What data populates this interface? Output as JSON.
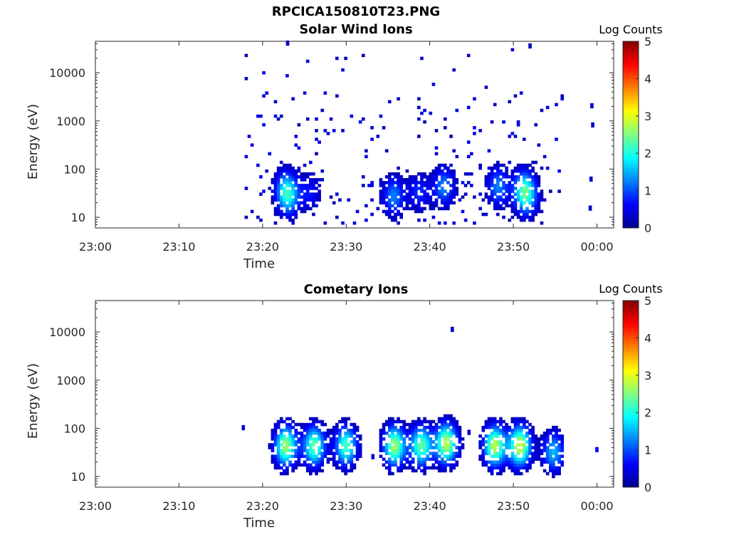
{
  "figure": {
    "title": "RPCICA150810T23.PNG"
  },
  "chart_data": [
    {
      "type": "heatmap",
      "title": "Solar Wind Ions",
      "xlabel": "Time",
      "ylabel": "Energy (eV)",
      "x_ticks": [
        "23:00",
        "23:10",
        "23:20",
        "23:30",
        "23:40",
        "23:50",
        "00:00"
      ],
      "x_range_minutes": [
        0,
        62
      ],
      "y_scale": "log",
      "y_ticks": [
        10,
        100,
        1000,
        10000
      ],
      "y_tick_labels": [
        "10",
        "100",
        "1000",
        "10000"
      ],
      "y_range": [
        6,
        45000
      ],
      "colorbar": {
        "title": "Log Counts",
        "range": [
          0,
          5
        ],
        "ticks": [
          "0",
          "1",
          "2",
          "3",
          "4",
          "5"
        ],
        "colormap": "jet"
      },
      "grid": false,
      "data_extent_minutes": [
        17.5,
        56
      ],
      "blobs": [
        {
          "t": 22.5,
          "e": 35,
          "v": 0.8
        },
        {
          "t": 23.0,
          "e": 25,
          "v": 0.9
        },
        {
          "t": 25.5,
          "e": 30,
          "v": 0.5
        },
        {
          "t": 35.5,
          "e": 25,
          "v": 0.9
        },
        {
          "t": 38.5,
          "e": 30,
          "v": 0.6
        },
        {
          "t": 41.5,
          "e": 40,
          "v": 0.9
        },
        {
          "t": 48.0,
          "e": 40,
          "v": 0.9
        },
        {
          "t": 51.0,
          "e": 35,
          "v": 1.0
        },
        {
          "t": 51.5,
          "e": 25,
          "v": 0.9
        }
      ],
      "isolated": [
        {
          "t": 59.2,
          "e": 2000,
          "v": 0.4
        },
        {
          "t": 59.3,
          "e": 800,
          "v": 0.4
        },
        {
          "t": 59.0,
          "e": 15,
          "v": 0.4
        },
        {
          "t": 59.1,
          "e": 60,
          "v": 0.4
        },
        {
          "t": 22.8,
          "e": 40000,
          "v": 0.3
        },
        {
          "t": 51.8,
          "e": 35000,
          "v": 0.3
        }
      ]
    },
    {
      "type": "heatmap",
      "title": "Cometary Ions",
      "xlabel": "Time",
      "ylabel": "Energy (eV)",
      "x_ticks": [
        "23:00",
        "23:10",
        "23:20",
        "23:30",
        "23:40",
        "23:50",
        "00:00"
      ],
      "x_range_minutes": [
        0,
        62
      ],
      "y_scale": "log",
      "y_ticks": [
        10,
        100,
        1000,
        10000
      ],
      "y_tick_labels": [
        "10",
        "100",
        "1000",
        "10000"
      ],
      "y_range": [
        6,
        45000
      ],
      "colorbar": {
        "title": "Log Counts",
        "range": [
          0,
          5
        ],
        "ticks": [
          "0",
          "1",
          "2",
          "3",
          "4",
          "5"
        ],
        "colormap": "jet"
      },
      "grid": false,
      "data_extent_minutes": [
        17.5,
        56
      ],
      "blobs": [
        {
          "t": 22.6,
          "e": 40,
          "v": 1.9
        },
        {
          "t": 26.0,
          "e": 40,
          "v": 1.7
        },
        {
          "t": 29.8,
          "e": 40,
          "v": 1.6
        },
        {
          "t": 35.6,
          "e": 40,
          "v": 1.9
        },
        {
          "t": 38.8,
          "e": 40,
          "v": 1.7
        },
        {
          "t": 41.8,
          "e": 45,
          "v": 2.0
        },
        {
          "t": 47.6,
          "e": 40,
          "v": 2.0
        },
        {
          "t": 50.6,
          "e": 40,
          "v": 2.1
        },
        {
          "t": 54.6,
          "e": 30,
          "v": 1.1
        }
      ],
      "isolated": [
        {
          "t": 42.5,
          "e": 11000,
          "v": 0.4
        },
        {
          "t": 17.5,
          "e": 100,
          "v": 0.4
        },
        {
          "t": 59.8,
          "e": 35,
          "v": 0.6
        },
        {
          "t": 44.5,
          "e": 80,
          "v": 0.3
        },
        {
          "t": 33.0,
          "e": 25,
          "v": 0.4
        }
      ]
    }
  ]
}
